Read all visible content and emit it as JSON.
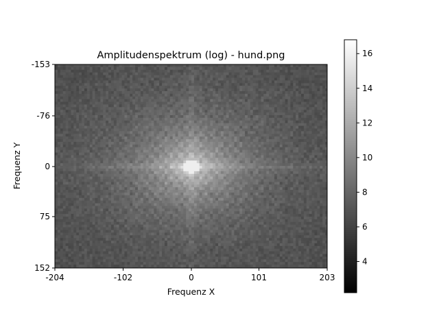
{
  "chart_data": {
    "type": "heatmap",
    "title": "Amplitudenspektrum (log) - hund.png",
    "xlabel": "Frequenz X",
    "ylabel": "Frequenz Y",
    "xlim": [
      -204,
      203
    ],
    "ylim": [
      -153,
      152
    ],
    "y_inverted": true,
    "xticks": [
      -204,
      -102,
      0,
      101,
      203
    ],
    "yticks": [
      -153,
      -76,
      0,
      75,
      152
    ],
    "colormap": "gray",
    "colorbar": {
      "vmin": 2.2,
      "vmax": 16.8,
      "ticks": [
        4,
        6,
        8,
        10,
        12,
        14,
        16
      ]
    },
    "description_values": {
      "background_log_amplitude": 6.5,
      "peak_log_amplitude": 16.8
    },
    "grid": false,
    "legend": "none"
  }
}
